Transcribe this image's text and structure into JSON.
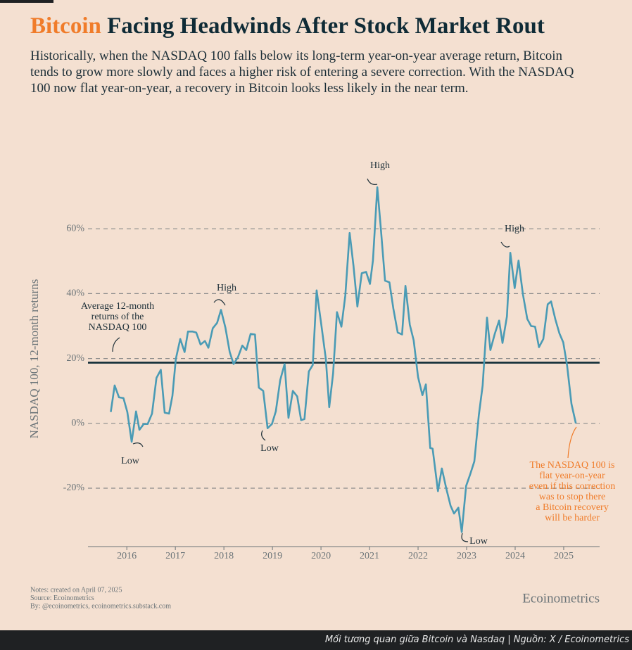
{
  "chart_data": {
    "type": "line",
    "title_highlight": "Bitcoin",
    "title": "Facing Headwinds After Stock Market Rout",
    "subtitle": "Historically, when the NASDAQ 100 falls below its long-term year-on-year average return, Bitcoin tends to grow more slowly and faces a higher risk of entering a severe correction. With the NASDAQ 100 now flat year-on-year, a recovery in Bitcoin looks less likely in the near term.",
    "y_label": "NASDAQ 100, 12-month returns",
    "xlim": [
      2015.2,
      2025.74
    ],
    "xticks": [
      2016,
      2017,
      2018,
      2019,
      2020,
      2021,
      2022,
      2023,
      2024,
      2025
    ],
    "ylim": [
      -38,
      80
    ],
    "yticks": [
      {
        "value": -20,
        "label": "-20%"
      },
      {
        "value": 0,
        "label": "0%"
      },
      {
        "value": 20,
        "label": "20%"
      },
      {
        "value": 40,
        "label": "40%"
      },
      {
        "value": 60,
        "label": "60%"
      }
    ],
    "grid": true,
    "average_line": 18.7,
    "average_color": "#0f2b36",
    "series": [
      {
        "name": "NASDAQ 100",
        "color": "#4a9bb5",
        "x": [
          2015.67,
          2015.75,
          2015.84,
          2015.93,
          2016.01,
          2016.1,
          2016.19,
          2016.26,
          2016.35,
          2016.43,
          2016.52,
          2016.61,
          2016.7,
          2016.78,
          2016.87,
          2016.94,
          2017.01,
          2017.1,
          2017.19,
          2017.26,
          2017.35,
          2017.43,
          2017.52,
          2017.61,
          2017.68,
          2017.77,
          2017.86,
          2017.94,
          2018.03,
          2018.12,
          2018.2,
          2018.29,
          2018.38,
          2018.46,
          2018.55,
          2018.64,
          2018.72,
          2018.81,
          2018.9,
          2018.99,
          2019.07,
          2019.16,
          2019.25,
          2019.33,
          2019.42,
          2019.51,
          2019.59,
          2019.66,
          2019.75,
          2019.83,
          2019.91,
          2020.01,
          2020.1,
          2020.17,
          2020.25,
          2020.33,
          2020.42,
          2020.5,
          2020.59,
          2020.67,
          2020.75,
          2020.84,
          2020.93,
          2021.01,
          2021.07,
          2021.16,
          2021.23,
          2021.32,
          2021.41,
          2021.49,
          2021.58,
          2021.67,
          2021.74,
          2021.83,
          2021.91,
          2022.0,
          2022.09,
          2022.16,
          2022.25,
          2022.3,
          2022.41,
          2022.49,
          2022.58,
          2022.67,
          2022.74,
          2022.83,
          2022.9,
          2022.99,
          2023.07,
          2023.16,
          2023.25,
          2023.33,
          2023.42,
          2023.49,
          2023.58,
          2023.67,
          2023.74,
          2023.83,
          2023.9,
          2023.99,
          2024.07,
          2024.16,
          2024.25,
          2024.33,
          2024.41,
          2024.49,
          2024.58,
          2024.67,
          2024.74,
          2024.83,
          2024.91,
          2024.99,
          2025.07,
          2025.16,
          2025.25
        ],
        "values": [
          3.5,
          11.7,
          8,
          7.8,
          3.5,
          -5.7,
          3.7,
          -2,
          -0.2,
          -0.2,
          3,
          14,
          16.5,
          3.3,
          3,
          8.5,
          19.8,
          26,
          22,
          28.3,
          28.3,
          28,
          24.3,
          25.4,
          23.3,
          29.3,
          31,
          35,
          29.6,
          22,
          18.3,
          20.4,
          24,
          22.6,
          27.6,
          27.4,
          11,
          10,
          -1.5,
          -0.2,
          3.7,
          13.3,
          18.3,
          1.7,
          10,
          8.3,
          1,
          1.3,
          16,
          18,
          41,
          30,
          19.8,
          5,
          15.4,
          34.3,
          29.8,
          39.3,
          58.7,
          48.5,
          36,
          46.3,
          46.7,
          43,
          50.2,
          72.8,
          60.7,
          44,
          43.5,
          35.4,
          28,
          27.4,
          42.4,
          30.4,
          25.6,
          14.3,
          8.7,
          12,
          -7.6,
          -7.8,
          -20.9,
          -13.9,
          -20,
          -25.4,
          -27.8,
          -26,
          -33.5,
          -19.3,
          -15.9,
          -11.7,
          2.4,
          11.7,
          32.6,
          22.6,
          27.6,
          31.7,
          24.8,
          33,
          52.6,
          41.7,
          50.2,
          39.8,
          32.2,
          30,
          29.8,
          23.5,
          26,
          36.7,
          37.6,
          32,
          27.8,
          25,
          17.8,
          6,
          0
        ]
      }
    ],
    "annotations": [
      {
        "lines": [
          "Average 12-month",
          "returns of the",
          "NASDAQ 100"
        ]
      },
      {
        "lines": [
          "High"
        ]
      },
      {
        "lines": [
          "High"
        ]
      },
      {
        "lines": [
          "High"
        ]
      },
      {
        "lines": [
          "Low"
        ]
      },
      {
        "lines": [
          "Low"
        ]
      },
      {
        "lines": [
          "Low"
        ]
      },
      {
        "lines": [
          "The NASDAQ 100 is",
          "flat year-on-year",
          "even if this correction",
          "was to stop there",
          "a Bitcoin recovery",
          "will be harder"
        ],
        "color": "#f07c2a"
      }
    ],
    "notes": [
      "Notes: created on April 07, 2025",
      "Source: Ecoinometrics",
      "By: @ecoinometrics, ecoinometrics.substack.com"
    ],
    "brand": "Ecoinometrics",
    "caption": "Mối tương quan giữa Bitcoin và Nasdaq | Nguồn: X / Ecoinometrics"
  }
}
